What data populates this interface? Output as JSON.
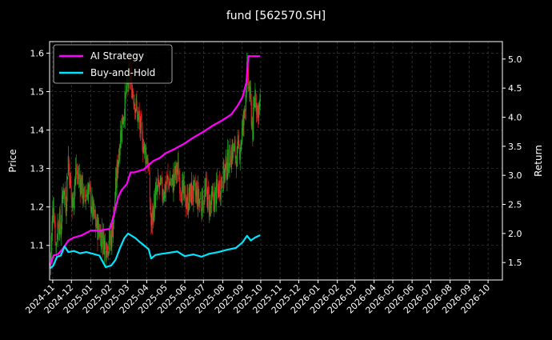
{
  "chart_data": {
    "type": "line",
    "title": "fund [562570.SH]",
    "ylabel_left": "Price",
    "ylabel_right": "Return",
    "grid": true,
    "legend_position": "top-left",
    "x_tick_labels": [
      "2024-11",
      "2024-12",
      "2025-01",
      "2025-02",
      "2025-03",
      "2025-04",
      "2025-05",
      "2025-06",
      "2025-07",
      "2025-08",
      "2025-09",
      "2025-10",
      "2025-11",
      "2025-12",
      "2026-01",
      "2026-02",
      "2026-03",
      "2026-04",
      "2026-05",
      "2026-06",
      "2026-07",
      "2026-08",
      "2026-09",
      "2026-10"
    ],
    "x_range": [
      "2024-10-27",
      "2026-10-24"
    ],
    "left_axis": {
      "range": [
        1.01,
        1.63
      ],
      "ticks": [
        1.1,
        1.2,
        1.3,
        1.4,
        1.5,
        1.6
      ]
    },
    "right_axis": {
      "range": [
        1.2,
        5.3
      ],
      "ticks": [
        1.5,
        2.0,
        2.5,
        3.0,
        3.5,
        4.0,
        4.5,
        5.0
      ]
    },
    "candles": {
      "name": "fund price (daily candles)",
      "up_color": "#22aa22",
      "down_color": "#dd2222",
      "close_path": [
        [
          "2024-10-28",
          1.05
        ],
        [
          "2024-11-02",
          1.22
        ],
        [
          "2024-11-06",
          1.1
        ],
        [
          "2024-11-10",
          1.17
        ],
        [
          "2024-11-14",
          1.14
        ],
        [
          "2024-11-18",
          1.26
        ],
        [
          "2024-11-22",
          1.21
        ],
        [
          "2024-11-26",
          1.33
        ],
        [
          "2024-12-02",
          1.2
        ],
        [
          "2024-12-08",
          1.29
        ],
        [
          "2024-12-15",
          1.27
        ],
        [
          "2024-12-22",
          1.22
        ],
        [
          "2024-12-28",
          1.25
        ],
        [
          "2025-01-04",
          1.19
        ],
        [
          "2025-01-10",
          1.15
        ],
        [
          "2025-01-18",
          1.13
        ],
        [
          "2025-01-25",
          1.1
        ],
        [
          "2025-02-03",
          1.12
        ],
        [
          "2025-02-08",
          1.2
        ],
        [
          "2025-02-14",
          1.33
        ],
        [
          "2025-02-20",
          1.42
        ],
        [
          "2025-02-26",
          1.48
        ],
        [
          "2025-03-04",
          1.55
        ],
        [
          "2025-03-10",
          1.5
        ],
        [
          "2025-03-16",
          1.45
        ],
        [
          "2025-03-22",
          1.4
        ],
        [
          "2025-03-28",
          1.35
        ],
        [
          "2025-04-03",
          1.32
        ],
        [
          "2025-04-08",
          1.15
        ],
        [
          "2025-04-14",
          1.22
        ],
        [
          "2025-04-20",
          1.25
        ],
        [
          "2025-04-27",
          1.24
        ],
        [
          "2025-05-05",
          1.27
        ],
        [
          "2025-05-12",
          1.26
        ],
        [
          "2025-05-20",
          1.3
        ],
        [
          "2025-05-28",
          1.24
        ],
        [
          "2025-06-05",
          1.21
        ],
        [
          "2025-06-12",
          1.24
        ],
        [
          "2025-06-20",
          1.23
        ],
        [
          "2025-06-28",
          1.21
        ],
        [
          "2025-07-05",
          1.24
        ],
        [
          "2025-07-12",
          1.2
        ],
        [
          "2025-07-20",
          1.23
        ],
        [
          "2025-07-28",
          1.26
        ],
        [
          "2025-08-04",
          1.29
        ],
        [
          "2025-08-10",
          1.32
        ],
        [
          "2025-08-17",
          1.35
        ],
        [
          "2025-08-24",
          1.33
        ],
        [
          "2025-08-30",
          1.37
        ],
        [
          "2025-09-04",
          1.43
        ],
        [
          "2025-09-09",
          1.55
        ],
        [
          "2025-09-14",
          1.48
        ],
        [
          "2025-09-18",
          1.4
        ],
        [
          "2025-09-22",
          1.5
        ],
        [
          "2025-09-26",
          1.45
        ],
        [
          "2025-09-30",
          1.47
        ]
      ]
    },
    "series": [
      {
        "name": "AI Strategy",
        "color": "#ff00ff",
        "axis": "right",
        "points": [
          [
            "2024-10-28",
            1.45
          ],
          [
            "2024-11-02",
            1.62
          ],
          [
            "2024-11-10",
            1.65
          ],
          [
            "2024-11-18",
            1.75
          ],
          [
            "2024-11-26",
            1.88
          ],
          [
            "2024-12-05",
            1.93
          ],
          [
            "2024-12-18",
            1.97
          ],
          [
            "2025-01-01",
            2.05
          ],
          [
            "2025-01-15",
            2.05
          ],
          [
            "2025-02-01",
            2.08
          ],
          [
            "2025-02-08",
            2.35
          ],
          [
            "2025-02-14",
            2.62
          ],
          [
            "2025-02-20",
            2.75
          ],
          [
            "2025-02-28",
            2.85
          ],
          [
            "2025-03-06",
            3.05
          ],
          [
            "2025-03-12",
            3.05
          ],
          [
            "2025-03-20",
            3.08
          ],
          [
            "2025-03-27",
            3.1
          ],
          [
            "2025-04-04",
            3.18
          ],
          [
            "2025-04-12",
            3.25
          ],
          [
            "2025-04-22",
            3.3
          ],
          [
            "2025-05-01",
            3.38
          ],
          [
            "2025-05-15",
            3.45
          ],
          [
            "2025-06-01",
            3.55
          ],
          [
            "2025-06-15",
            3.65
          ],
          [
            "2025-07-01",
            3.75
          ],
          [
            "2025-07-15",
            3.85
          ],
          [
            "2025-08-01",
            3.95
          ],
          [
            "2025-08-15",
            4.05
          ],
          [
            "2025-08-25",
            4.2
          ],
          [
            "2025-09-02",
            4.35
          ],
          [
            "2025-09-08",
            4.6
          ],
          [
            "2025-09-11",
            5.05
          ],
          [
            "2025-09-15",
            5.05
          ],
          [
            "2025-09-30",
            5.05
          ]
        ]
      },
      {
        "name": "Buy-and-Hold",
        "color": "#00e5ff",
        "axis": "right",
        "points": [
          [
            "2024-10-28",
            1.4
          ],
          [
            "2024-11-02",
            1.45
          ],
          [
            "2024-11-08",
            1.6
          ],
          [
            "2024-11-14",
            1.62
          ],
          [
            "2024-11-20",
            1.78
          ],
          [
            "2024-11-26",
            1.68
          ],
          [
            "2024-12-05",
            1.7
          ],
          [
            "2024-12-15",
            1.66
          ],
          [
            "2024-12-25",
            1.68
          ],
          [
            "2025-01-05",
            1.65
          ],
          [
            "2025-01-15",
            1.62
          ],
          [
            "2025-01-25",
            1.42
          ],
          [
            "2025-02-03",
            1.45
          ],
          [
            "2025-02-10",
            1.55
          ],
          [
            "2025-02-17",
            1.75
          ],
          [
            "2025-02-24",
            1.92
          ],
          [
            "2025-03-02",
            2.0
          ],
          [
            "2025-03-08",
            1.96
          ],
          [
            "2025-03-14",
            1.92
          ],
          [
            "2025-03-20",
            1.86
          ],
          [
            "2025-03-27",
            1.8
          ],
          [
            "2025-04-04",
            1.73
          ],
          [
            "2025-04-08",
            1.57
          ],
          [
            "2025-04-15",
            1.63
          ],
          [
            "2025-04-25",
            1.65
          ],
          [
            "2025-05-08",
            1.67
          ],
          [
            "2025-05-20",
            1.69
          ],
          [
            "2025-06-01",
            1.61
          ],
          [
            "2025-06-15",
            1.64
          ],
          [
            "2025-06-28",
            1.6
          ],
          [
            "2025-07-10",
            1.65
          ],
          [
            "2025-07-25",
            1.68
          ],
          [
            "2025-08-08",
            1.72
          ],
          [
            "2025-08-22",
            1.75
          ],
          [
            "2025-09-02",
            1.85
          ],
          [
            "2025-09-09",
            1.96
          ],
          [
            "2025-09-15",
            1.88
          ],
          [
            "2025-09-22",
            1.93
          ],
          [
            "2025-09-30",
            1.97
          ]
        ]
      }
    ]
  }
}
